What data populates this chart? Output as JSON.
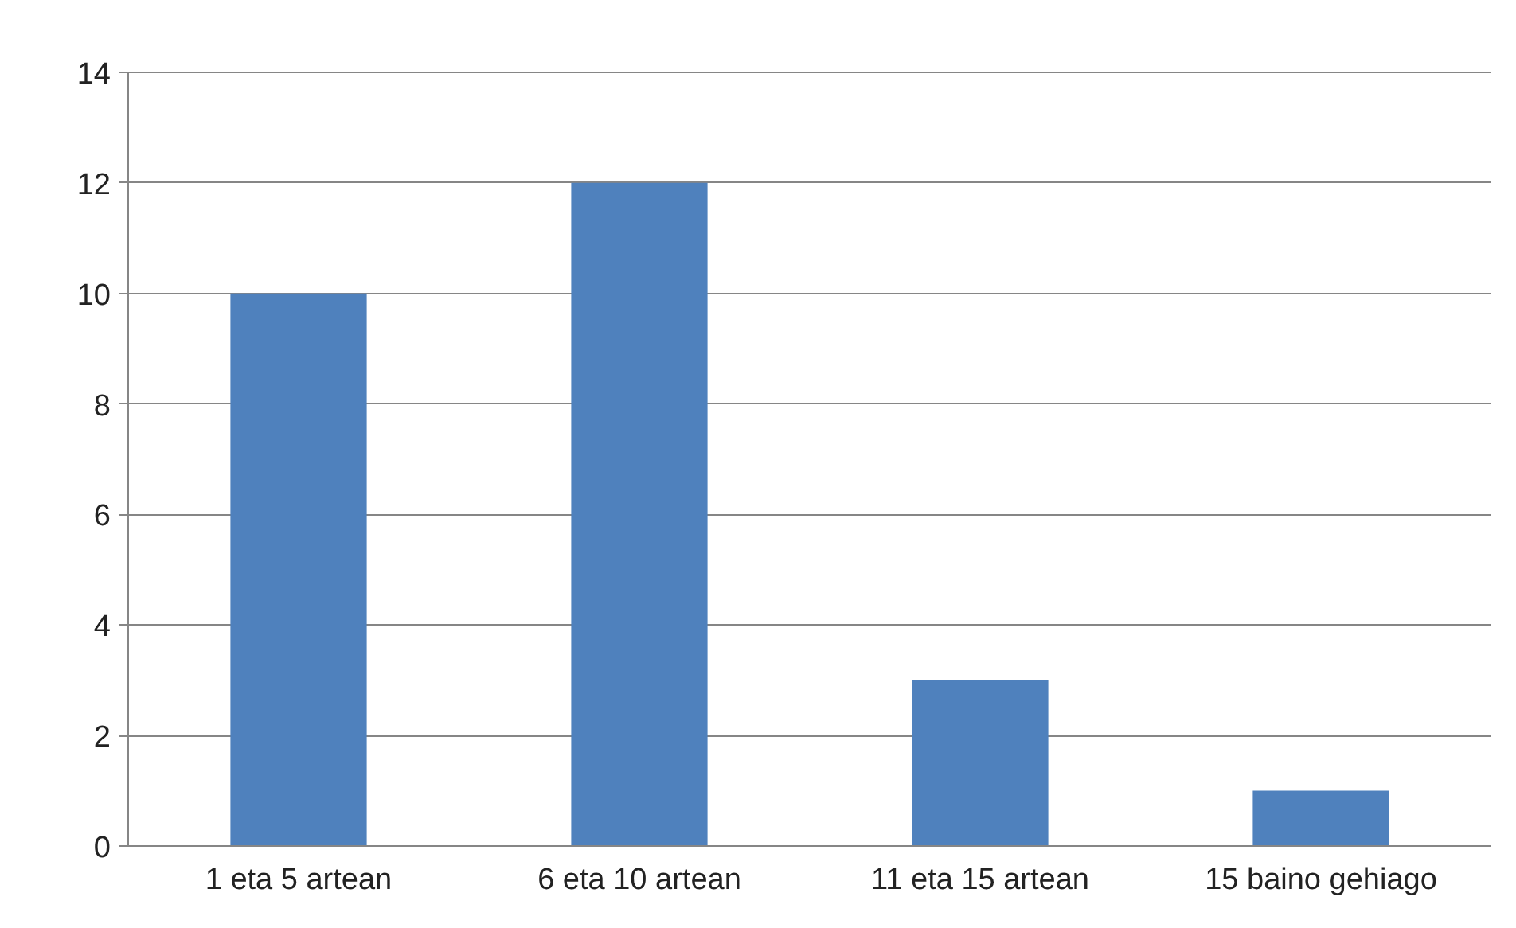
{
  "chart_data": {
    "type": "bar",
    "categories": [
      "1 eta 5 artean",
      "6 eta 10 artean",
      "11 eta 15 artean",
      "15 baino gehiago"
    ],
    "values": [
      10,
      12,
      3,
      1
    ],
    "color": "#4f81bd",
    "ylim": [
      0,
      14
    ],
    "yticks": [
      0,
      2,
      4,
      6,
      8,
      10,
      12,
      14
    ],
    "grid": "y"
  }
}
